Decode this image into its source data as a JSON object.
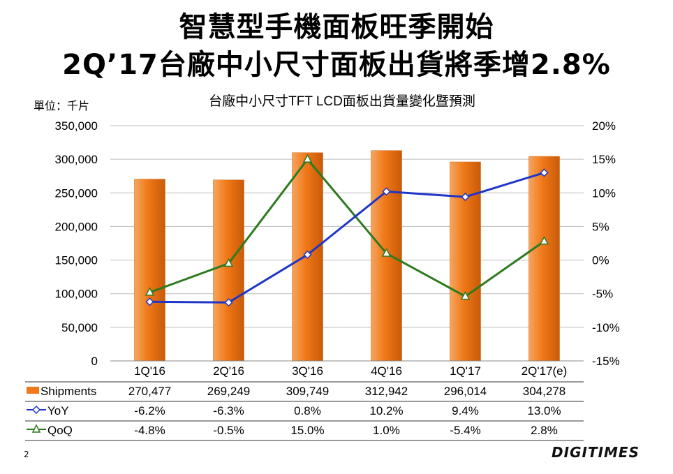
{
  "title_line1": "智慧型手機面板旺季開始",
  "title_line2": "2Q’17台廠中小尺寸面板出貨將季增2.8%",
  "page_number": "2",
  "logo_text": "DIGITIMES",
  "chart_data": {
    "type": "bar",
    "title": "台廠中小尺寸TFT LCD面板出貨量變化暨預測",
    "unit_label": "單位：千片",
    "categories": [
      "1Q'16",
      "2Q'16",
      "3Q'16",
      "4Q'16",
      "1Q'17",
      "2Q'17(e)"
    ],
    "left_axis": {
      "min": 0,
      "max": 350000,
      "step": 50000,
      "ticks": [
        "0",
        "50,000",
        "100,000",
        "150,000",
        "200,000",
        "250,000",
        "300,000",
        "350,000"
      ]
    },
    "right_axis": {
      "min": -15,
      "max": 20,
      "step": 5,
      "ticks": [
        "-15%",
        "-10%",
        "-5%",
        "0%",
        "5%",
        "10%",
        "15%",
        "20%"
      ]
    },
    "grid": true,
    "series": [
      {
        "name": "Shipments",
        "type": "bar",
        "axis": "left",
        "color": "#f07818",
        "values": [
          270477,
          269249,
          309749,
          312942,
          296014,
          304278
        ],
        "labels": [
          "270,477",
          "269,249",
          "309,749",
          "312,942",
          "296,014",
          "304,278"
        ]
      },
      {
        "name": "YoY",
        "type": "line",
        "axis": "right",
        "color": "#1f35c8",
        "marker": "diamond",
        "values": [
          -6.2,
          -6.3,
          0.8,
          10.2,
          9.4,
          13.0
        ],
        "labels": [
          "-6.2%",
          "-6.3%",
          "0.8%",
          "10.2%",
          "9.4%",
          "13.0%"
        ]
      },
      {
        "name": "QoQ",
        "type": "line",
        "axis": "right",
        "color": "#2d7a1f",
        "marker": "triangle",
        "values": [
          -4.8,
          -0.5,
          15.0,
          1.0,
          -5.4,
          2.8
        ],
        "labels": [
          "-4.8%",
          "-0.5%",
          "15.0%",
          "1.0%",
          "-5.4%",
          "2.8%"
        ]
      }
    ]
  }
}
